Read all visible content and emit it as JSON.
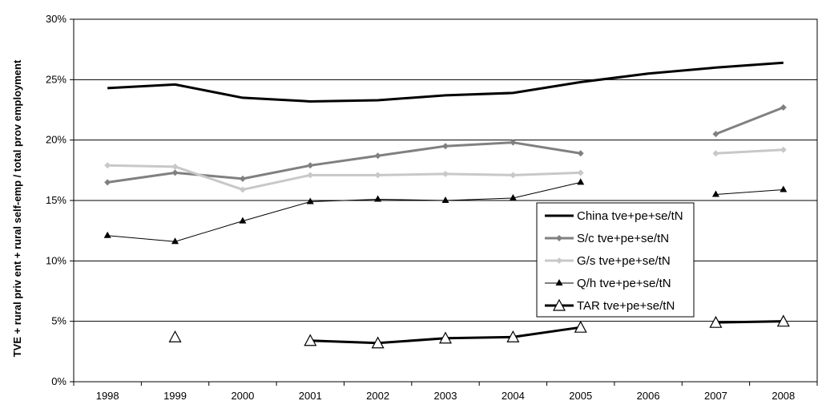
{
  "chart_data": {
    "type": "line",
    "ylabel": "TVE + rural priv ent + rural self-emp / total prov employment",
    "categories": [
      "1998",
      "1999",
      "2000",
      "2001",
      "2002",
      "2003",
      "2004",
      "2005",
      "2006",
      "2007",
      "2008"
    ],
    "yticks": [
      "0%",
      "5%",
      "10%",
      "15%",
      "20%",
      "25%",
      "30%"
    ],
    "ylim": [
      0,
      30
    ],
    "grid": "horizontal",
    "legend_position": "inside-right",
    "series": [
      {
        "name": "China tve+pe+se/tN",
        "color": "#000000",
        "stroke_width": 3,
        "marker": "none",
        "values": [
          24.3,
          24.6,
          23.5,
          23.2,
          23.3,
          23.7,
          23.9,
          24.8,
          25.5,
          26.0,
          26.4
        ]
      },
      {
        "name": "S/c tve+pe+se/tN",
        "color": "#808080",
        "stroke_width": 3,
        "marker": "diamond",
        "values": [
          16.5,
          17.3,
          16.8,
          17.9,
          18.7,
          19.5,
          19.8,
          18.9,
          null,
          20.5,
          22.7
        ]
      },
      {
        "name": "G/s tve+pe+se/tN",
        "color": "#c8c8c8",
        "stroke_width": 3,
        "marker": "diamond",
        "values": [
          17.9,
          17.8,
          15.9,
          17.1,
          17.1,
          17.2,
          17.1,
          17.3,
          null,
          18.9,
          19.2
        ]
      },
      {
        "name": "Q/h tve+pe+se/tN",
        "color": "#000000",
        "stroke_width": 1,
        "marker": "triangle-filled",
        "values": [
          12.1,
          11.6,
          13.3,
          14.9,
          15.1,
          15.0,
          15.2,
          16.5,
          null,
          15.5,
          15.9
        ]
      },
      {
        "name": "TAR tve+pe+se/tN",
        "color": "#000000",
        "stroke_width": 3,
        "marker": "triangle-open",
        "values": [
          null,
          3.7,
          null,
          3.4,
          3.2,
          3.6,
          3.7,
          4.5,
          null,
          4.9,
          5.0
        ]
      }
    ]
  }
}
